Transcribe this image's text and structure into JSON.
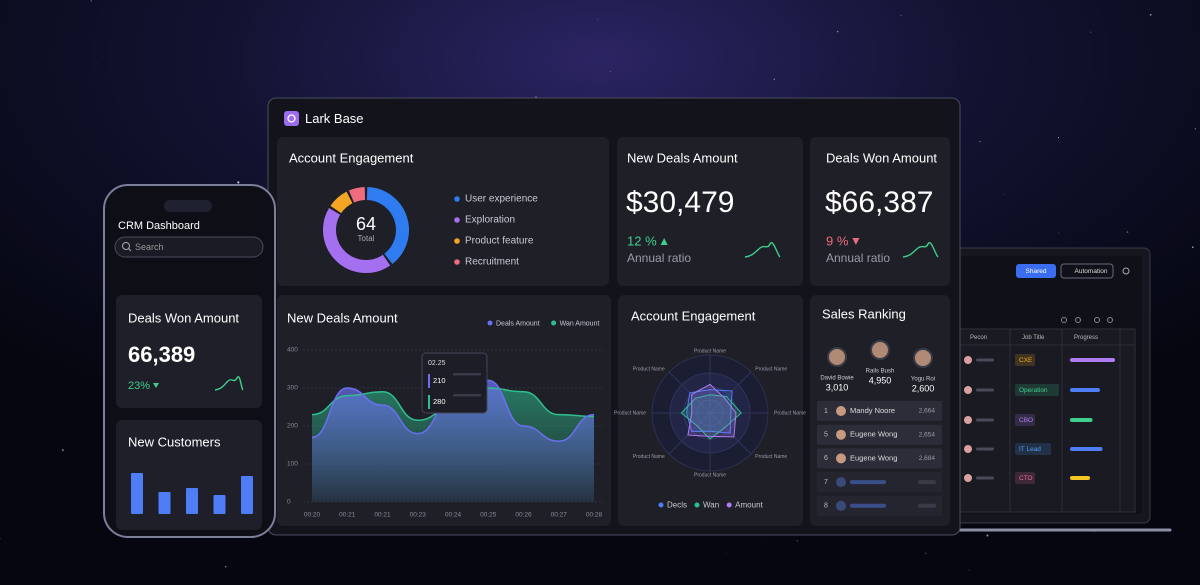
{
  "window": {
    "title": "Lark Base"
  },
  "engagement": {
    "title": "Account Engagement",
    "total": 64,
    "total_label": "Total",
    "segments": [
      {
        "name": "User experience",
        "color": "#2f7bf0",
        "value": 40
      },
      {
        "name": "Exploration",
        "color": "#a470f0",
        "value": 44
      },
      {
        "name": "Product feature",
        "color": "#f5a524",
        "value": 9
      },
      {
        "name": "Recruitment",
        "color": "#ef6b7e",
        "value": 7
      }
    ]
  },
  "new_deals": {
    "title": "New Deals Amount",
    "amount": "$30,479",
    "change": "12 %",
    "change_label": "Annual ratio"
  },
  "deals_won": {
    "title": "Deals Won Amount",
    "amount": "$66,387",
    "change": "9 %",
    "change_label": "Annual ratio"
  },
  "chart_data": {
    "type": "area",
    "title": "New Deals Amount",
    "categories": [
      "00:20",
      "00:21",
      "00:21",
      "00:23",
      "00:24",
      "00:25",
      "00:26",
      "00:27",
      "00:28"
    ],
    "series": [
      {
        "name": "Deals Amount",
        "color": "#6b6ff0",
        "values": [
          170,
          300,
          255,
          180,
          270,
          320,
          200,
          160,
          230
        ]
      },
      {
        "name": "Wan Amount",
        "color": "#2fbf8f",
        "values": [
          230,
          280,
          290,
          215,
          250,
          300,
          290,
          230,
          225
        ]
      }
    ],
    "ylim": [
      0,
      400
    ],
    "yticks": [
      0,
      100,
      200,
      300,
      400
    ],
    "grid": true,
    "legend": "top-right",
    "tooltip": {
      "label": "02.25",
      "values": [
        210,
        280
      ]
    }
  },
  "radar": {
    "title": "Account Engagement",
    "axes": [
      "Product Name",
      "Product Name",
      "Product Name",
      "Product Name",
      "Product Name",
      "Product Name",
      "Product Name",
      "Product Name"
    ],
    "series": [
      {
        "name": "Decls",
        "color": "#4f7df5",
        "values": [
          45,
          60,
          40,
          55,
          35,
          50,
          45,
          55
        ]
      },
      {
        "name": "Wan",
        "color": "#2fbf8f",
        "values": [
          35,
          45,
          60,
          40,
          50,
          35,
          55,
          40
        ]
      },
      {
        "name": "Amount",
        "color": "#b07cf5",
        "values": [
          55,
          40,
          50,
          65,
          45,
          60,
          35,
          50
        ]
      }
    ]
  },
  "ranking": {
    "title": "Sales Ranking",
    "top": [
      {
        "name": "David Bowie",
        "score": "3,010"
      },
      {
        "name": "Rails Bush",
        "score": "4,950"
      },
      {
        "name": "Yogu Roi",
        "score": "2,600"
      }
    ],
    "rows": [
      {
        "rank": 1,
        "name": "Mandy Noore",
        "score": "2,664"
      },
      {
        "rank": 5,
        "name": "Eugene Wong",
        "score": "2,654"
      },
      {
        "rank": 6,
        "name": "Eugene Wong",
        "score": "2,684"
      },
      {
        "rank": 7
      },
      {
        "rank": 8
      }
    ]
  },
  "phone": {
    "title": "CRM Dashboard",
    "search": "Search",
    "deals_won": {
      "title": "Deals Won Amount",
      "amount": "66,389",
      "change": "23%"
    },
    "new_customers": {
      "title": "New Customers",
      "color": "#4f7df5",
      "values": [
        41,
        22,
        26,
        19,
        38
      ]
    }
  },
  "table": {
    "buttons": [
      "Shared",
      "Automation"
    ],
    "columns": [
      "Pecon",
      "Job Title",
      "Progress"
    ],
    "rows": [
      {
        "role": "CXE",
        "role_color": "#f5a524",
        "progress": 90,
        "progress_color": "#b07cf5"
      },
      {
        "role": "Operation",
        "role_color": "#3ecf8e",
        "progress": 60,
        "progress_color": "#4f7df5"
      },
      {
        "role": "CBO",
        "role_color": "#b07cf5",
        "progress": 45,
        "progress_color": "#3ecf8e"
      },
      {
        "role": "IT Lead",
        "role_color": "#4f9df5",
        "progress": 65,
        "progress_color": "#4f7df5"
      },
      {
        "role": "CTO",
        "role_color": "#ef6b9e",
        "progress": 40,
        "progress_color": "#f5c524"
      }
    ]
  }
}
